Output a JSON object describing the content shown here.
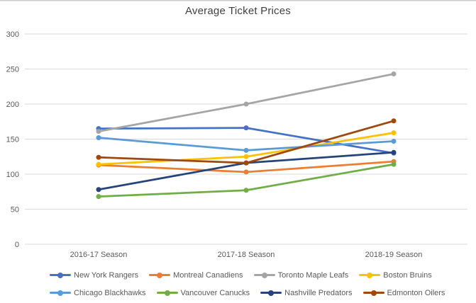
{
  "title": "Average Ticket Prices",
  "chart_data": {
    "type": "line",
    "title": "Average Ticket Prices",
    "categories": [
      "2016-17 Season",
      "2017-18 Season",
      "2018-19 Season"
    ],
    "series": [
      {
        "name": "New York Rangers",
        "color": "#4472C4",
        "values": [
          165,
          166,
          130
        ]
      },
      {
        "name": "Montreal Canadiens",
        "color": "#ED7D31",
        "values": [
          113,
          103,
          118
        ]
      },
      {
        "name": "Toronto Maple Leafs",
        "color": "#A5A5A5",
        "values": [
          161,
          200,
          243
        ]
      },
      {
        "name": "Boston Bruins",
        "color": "#FFC000",
        "values": [
          114,
          125,
          159
        ]
      },
      {
        "name": "Chicago Blackhawks",
        "color": "#5B9BD5",
        "values": [
          152,
          134,
          147
        ]
      },
      {
        "name": "Vancouver Canucks",
        "color": "#70AD47",
        "values": [
          68,
          77,
          114
        ]
      },
      {
        "name": "Nashville Predators",
        "color": "#264478",
        "values": [
          78,
          116,
          131
        ]
      },
      {
        "name": "Edmonton Oilers",
        "color": "#9E480E",
        "values": [
          124,
          116,
          176
        ]
      }
    ],
    "ylim": [
      0,
      300
    ],
    "y_ticks": [
      0,
      50,
      100,
      150,
      200,
      250,
      300
    ],
    "grid": true,
    "legend_position": "bottom",
    "colors": {
      "gridline": "#D9D9D9",
      "axis_text": "#595959",
      "title_text": "#404040",
      "background": "#FFFFFF"
    }
  }
}
